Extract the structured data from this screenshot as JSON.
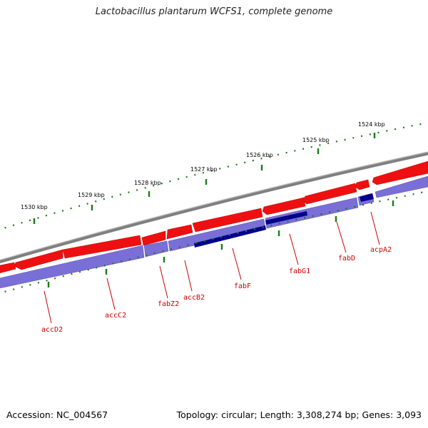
{
  "title": "Lactobacillus plantarum WCFS1, complete genome",
  "footer": {
    "accession": "Accession: NC_004567",
    "summary": "Topology: circular; Length: 3,308,274 bp; Genes: 3,093"
  },
  "colors": {
    "backbone": "#8c8c8c",
    "forward_gene": "#ee0000",
    "reverse_gene": "#7a6fd6",
    "reverse_highlight": "#00008b",
    "gene_label": "#d00000",
    "tick_marks": "#1a7a1a"
  },
  "scale_labels": [
    "1524 kbp",
    "1525 kbp",
    "1526 kbp",
    "1527 kbp",
    "1528 kbp",
    "1529 kbp",
    "1530 kbp"
  ],
  "gene_labels": [
    "acpA2",
    "fabD",
    "fabG1",
    "fabF",
    "accB2",
    "fabZ2",
    "accC2",
    "accD2"
  ]
}
